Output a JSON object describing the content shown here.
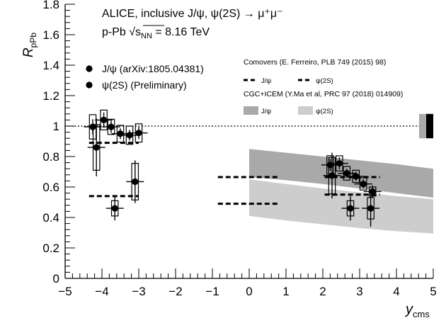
{
  "chart_data": {
    "type": "scatter",
    "title": "",
    "x_axis": {
      "label": "y",
      "label_subscript": "cms",
      "range": [
        -5,
        5
      ],
      "ticks": [
        -5,
        -4,
        -3,
        -2,
        -1,
        0,
        1,
        2,
        3,
        4,
        5
      ],
      "tick_labels": [
        "−5",
        "−4",
        "−3",
        "−2",
        "−1",
        "0",
        "1",
        "2",
        "3",
        "4",
        "5"
      ]
    },
    "y_axis": {
      "label": "R",
      "label_subscript": "pPb",
      "range": [
        0,
        1.8
      ],
      "ticks": [
        0,
        0.2,
        0.4,
        0.6,
        0.8,
        1,
        1.2,
        1.4,
        1.6,
        1.8
      ],
      "tick_labels": [
        "0",
        "0.2",
        "0.4",
        "0.6",
        "0.8",
        "1",
        "1.2",
        "1.4",
        "1.6",
        "1.8"
      ]
    },
    "grid": false,
    "reference_line": {
      "y": 1,
      "style": "dotted"
    },
    "annotations": {
      "line1": "ALICE, inclusive J/ψ, ψ(2S) → μ⁺μ⁻",
      "line2_prefix": "p-Pb √",
      "line2_sqrt": "s",
      "line2_sub": "NN",
      "line2_suffix": " = 8.16 TeV"
    },
    "series": [
      {
        "name": "J/ψ (arXiv:1805.04381)",
        "marker": "circle",
        "color": "#000000",
        "points": [
          {
            "x": -4.25,
            "y": 0.995,
            "stat": 0.05,
            "syst": 0.08
          },
          {
            "x": -3.95,
            "y": 1.04,
            "stat": 0.05,
            "syst": 0.065
          },
          {
            "x": -3.75,
            "y": 0.995,
            "stat": 0.04,
            "syst": 0.05
          },
          {
            "x": -3.5,
            "y": 0.95,
            "stat": 0.035,
            "syst": 0.055
          },
          {
            "x": -3.25,
            "y": 0.94,
            "stat": 0.035,
            "syst": 0.06
          },
          {
            "x": -3.0,
            "y": 0.955,
            "stat": 0.04,
            "syst": 0.06
          },
          {
            "x": 2.2,
            "y": 0.745,
            "stat": 0.04,
            "syst": 0.06
          },
          {
            "x": 2.45,
            "y": 0.755,
            "stat": 0.04,
            "syst": 0.05
          },
          {
            "x": 2.65,
            "y": 0.69,
            "stat": 0.03,
            "syst": 0.045
          },
          {
            "x": 2.9,
            "y": 0.67,
            "stat": 0.03,
            "syst": 0.04
          },
          {
            "x": 3.1,
            "y": 0.62,
            "stat": 0.03,
            "syst": 0.04
          },
          {
            "x": 3.35,
            "y": 0.57,
            "stat": 0.04,
            "syst": 0.03
          }
        ]
      },
      {
        "name": "ψ(2S) (Preliminary)",
        "marker": "circle",
        "color": "#000000",
        "points": [
          {
            "x": -4.15,
            "y": 0.86,
            "stat": 0.19,
            "syst": 0.15
          },
          {
            "x": -3.65,
            "y": 0.46,
            "stat": 0.08,
            "syst": 0.05
          },
          {
            "x": -3.1,
            "y": 0.635,
            "stat": 0.14,
            "syst": 0.12
          },
          {
            "x": 2.25,
            "y": 0.675,
            "stat": 0.15,
            "syst": 0.12
          },
          {
            "x": 2.75,
            "y": 0.46,
            "stat": 0.08,
            "syst": 0.05
          },
          {
            "x": 3.3,
            "y": 0.46,
            "stat": 0.12,
            "syst": 0.07
          }
        ]
      }
    ],
    "models": {
      "comovers": {
        "title": "Comovers (E. Ferreiro, PLB 749 (2015) 98)",
        "jpsi_label": "J/ψ",
        "psi2s_label": "ψ(2S)",
        "segments": [
          {
            "state": "J/ψ",
            "x": [
              -4.35,
              -3.0
            ],
            "y": 0.89
          },
          {
            "state": "ψ(2S)",
            "x": [
              -4.35,
              -3.0
            ],
            "y": 0.54
          },
          {
            "state": "J/ψ",
            "x": [
              -0.85,
              0.8
            ],
            "y": 0.665
          },
          {
            "state": "ψ(2S)",
            "x": [
              -0.85,
              0.8
            ],
            "y": 0.49
          },
          {
            "state": "J/ψ",
            "x": [
              2.05,
              3.55
            ],
            "y": 0.665
          },
          {
            "state": "ψ(2S)",
            "x": [
              2.05,
              3.55
            ],
            "y": 0.55
          }
        ]
      },
      "cgc_icem": {
        "title": "CGC+ICEM (Y.Ma et al, PRC 97 (2018) 014909)",
        "jpsi_label": "J/ψ",
        "psi2s_label": "ψ(2S)",
        "jpsi_color": "#a9a9a9",
        "psi2s_color": "#cdcdcd",
        "jpsi_band": {
          "x": [
            0,
            1,
            2,
            3,
            4,
            5
          ],
          "low": [
            0.665,
            0.645,
            0.62,
            0.59,
            0.56,
            0.53
          ],
          "high": [
            0.85,
            0.825,
            0.8,
            0.775,
            0.75,
            0.72
          ]
        },
        "psi2s_band": {
          "x": [
            0,
            1,
            2,
            3,
            4,
            5
          ],
          "low": [
            0.41,
            0.38,
            0.355,
            0.33,
            0.31,
            0.295
          ],
          "high": [
            0.65,
            0.62,
            0.59,
            0.565,
            0.54,
            0.52
          ]
        }
      }
    },
    "global_uncertainty_boxes": [
      {
        "color": "#a9a9a9",
        "y_low": 0.92,
        "y_high": 1.08
      },
      {
        "color": "#000000",
        "y_low": 0.92,
        "y_high": 1.08
      }
    ],
    "legend": {
      "placement": "top-left",
      "entries": [
        "J/ψ (arXiv:1805.04381)",
        "ψ(2S) (Preliminary)"
      ]
    }
  }
}
